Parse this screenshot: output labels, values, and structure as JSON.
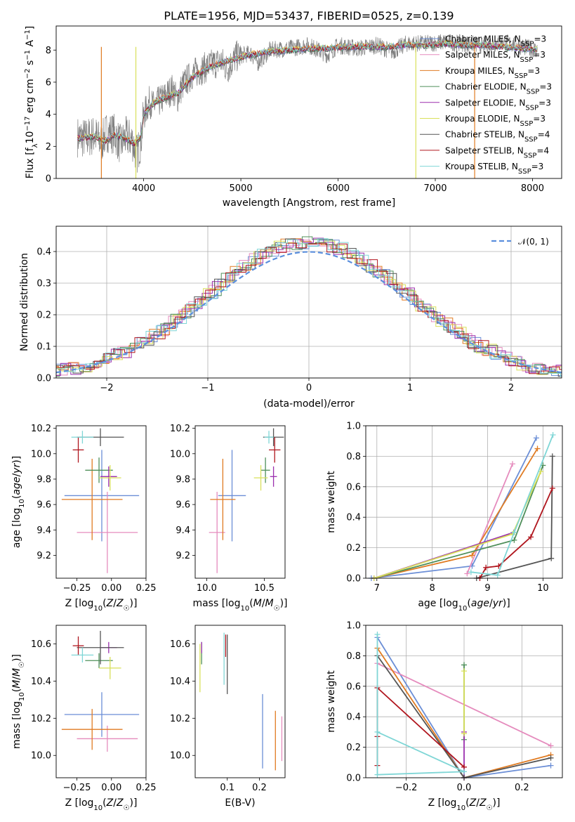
{
  "figure": {
    "title": "PLATE=1956, MJD=53437, FIBERID=0525, z=0.139"
  },
  "series_colors": {
    "Chabrier MILES": "#6b8ed6",
    "Salpeter MILES": "#e58bbd",
    "Kroupa MILES": "#e07b22",
    "Chabrier ELODIE": "#4f8f5a",
    "Salpeter ELODIE": "#9b2fae",
    "Kroupa ELODIE": "#d9e05a",
    "Chabrier STELIB": "#555555",
    "Salpeter STELIB": "#b0161e",
    "Kroupa STELIB": "#7fd6d6"
  },
  "chart_data": [
    {
      "id": "spectrum",
      "type": "line",
      "title": "PLATE=1956, MJD=53437, FIBERID=0525, z=0.139",
      "xlabel": "wavelength [Angstrom, rest frame]",
      "ylabel": "Flux [fλ10⁻¹⁷ erg cm⁻² s⁻¹ A⁻¹]",
      "xlim": [
        3100,
        8300
      ],
      "ylim": [
        0,
        9.5
      ],
      "xticks": [
        4000,
        5000,
        6000,
        7000,
        8000
      ],
      "yticks": [
        0,
        2,
        4,
        6,
        8
      ],
      "data_color": "#808080",
      "data_points": [
        [
          3320,
          2.6
        ],
        [
          3400,
          2.5
        ],
        [
          3500,
          2.7
        ],
        [
          3560,
          2.2
        ],
        [
          3620,
          2.9
        ],
        [
          3700,
          2.8
        ],
        [
          3760,
          2.1
        ],
        [
          3820,
          2.6
        ],
        [
          3880,
          2.4
        ],
        [
          3930,
          1.5
        ],
        [
          3970,
          2.3
        ],
        [
          4000,
          3.9
        ],
        [
          4060,
          4.8
        ],
        [
          4100,
          4.5
        ],
        [
          4200,
          5.0
        ],
        [
          4300,
          5.6
        ],
        [
          4340,
          4.9
        ],
        [
          4400,
          5.8
        ],
        [
          4500,
          6.5
        ],
        [
          4600,
          6.8
        ],
        [
          4700,
          7.1
        ],
        [
          4800,
          7.3
        ],
        [
          4860,
          6.8
        ],
        [
          4950,
          7.6
        ],
        [
          5100,
          7.8
        ],
        [
          5175,
          7.2
        ],
        [
          5300,
          8.0
        ],
        [
          5500,
          8.1
        ],
        [
          5700,
          8.3
        ],
        [
          5890,
          7.7
        ],
        [
          6000,
          8.3
        ],
        [
          6200,
          8.1
        ],
        [
          6400,
          8.3
        ],
        [
          6560,
          7.9
        ],
        [
          6700,
          8.4
        ],
        [
          6900,
          8.4
        ],
        [
          7100,
          8.5
        ],
        [
          7300,
          8.4
        ],
        [
          7500,
          8.3
        ],
        [
          7700,
          8.5
        ],
        [
          7900,
          8.2
        ],
        [
          8050,
          8.0
        ]
      ],
      "model_points": [
        [
          3320,
          2.5
        ],
        [
          3500,
          2.6
        ],
        [
          3600,
          2.3
        ],
        [
          3700,
          2.7
        ],
        [
          3800,
          2.5
        ],
        [
          3900,
          2.2
        ],
        [
          3970,
          2.6
        ],
        [
          4000,
          4.0
        ],
        [
          4100,
          4.7
        ],
        [
          4200,
          5.0
        ],
        [
          4350,
          5.3
        ],
        [
          4500,
          6.3
        ],
        [
          4700,
          7.0
        ],
        [
          4900,
          7.4
        ],
        [
          5100,
          7.7
        ],
        [
          5300,
          7.9
        ],
        [
          5500,
          8.0
        ],
        [
          5700,
          8.1
        ],
        [
          5900,
          8.1
        ],
        [
          6100,
          8.2
        ],
        [
          6300,
          8.2
        ],
        [
          6500,
          8.2
        ],
        [
          6700,
          8.3
        ],
        [
          6900,
          8.3
        ],
        [
          7100,
          8.4
        ],
        [
          7300,
          8.3
        ],
        [
          7500,
          8.3
        ],
        [
          7700,
          8.2
        ],
        [
          7900,
          8.1
        ],
        [
          8050,
          8.0
        ]
      ],
      "series": [
        {
          "name": "Chabrier MILES, N_SSP=3",
          "label": "Chabrier MILES, N",
          "sub": "SSP",
          "suffix": "=3",
          "color": "#6b8ed6"
        },
        {
          "name": "Salpeter MILES, N_SSP=3",
          "label": "Salpeter MILES, N",
          "sub": "SSP",
          "suffix": "=3",
          "color": "#e58bbd"
        },
        {
          "name": "Kroupa MILES, N_SSP=3",
          "label": "Kroupa MILES, N",
          "sub": "SSP",
          "suffix": "=3",
          "color": "#e07b22"
        },
        {
          "name": "Chabrier ELODIE, N_SSP=3",
          "label": "Chabrier ELODIE, N",
          "sub": "SSP",
          "suffix": "=3",
          "color": "#4f8f5a"
        },
        {
          "name": "Salpeter ELODIE, N_SSP=3",
          "label": "Salpeter ELODIE, N",
          "sub": "SSP",
          "suffix": "=3",
          "color": "#9b2fae"
        },
        {
          "name": "Kroupa ELODIE, N_SSP=3",
          "label": "Kroupa ELODIE, N",
          "sub": "SSP",
          "suffix": "=3",
          "color": "#d9e05a"
        },
        {
          "name": "Chabrier STELIB, N_SSP=4",
          "label": "Chabrier STELIB, N",
          "sub": "SSP",
          "suffix": "=4",
          "color": "#555555"
        },
        {
          "name": "Salpeter STELIB, N_SSP=4",
          "label": "Salpeter STELIB, N",
          "sub": "SSP",
          "suffix": "=4",
          "color": "#b0161e"
        },
        {
          "name": "Kroupa STELIB, N_SSP=3",
          "label": "Kroupa STELIB, N",
          "sub": "SSP",
          "suffix": "=3",
          "color": "#7fd6d6"
        }
      ],
      "legend_position": "right"
    },
    {
      "id": "residuals",
      "type": "line",
      "xlabel": "(data-model)/error",
      "ylabel": "Normed distribution",
      "xlim": [
        -2.5,
        2.5
      ],
      "ylim": [
        0,
        0.48
      ],
      "xticks": [
        -2,
        -1,
        0,
        1,
        2
      ],
      "xticklabels": [
        "−2",
        "−1",
        "0",
        "1",
        "2"
      ],
      "yticks": [
        0.0,
        0.1,
        0.2,
        0.3,
        0.4
      ],
      "yticklabels": [
        "0.0",
        "0.1",
        "0.2",
        "0.3",
        "0.4"
      ],
      "grid": true,
      "gaussian": {
        "name": "N(0,1)",
        "legend": "𝒩(0, 1)",
        "color": "#5b8fdd"
      },
      "legend_position": "upper right"
    },
    {
      "id": "age_vs_Z",
      "type": "scatter",
      "xlabel": "Z [log10(Z/Z☉)]",
      "ylabel": "age [log10(age/yr)]",
      "xlim": [
        -0.4,
        0.25
      ],
      "ylim": [
        9.02,
        10.22
      ],
      "xticks": [
        -0.25,
        0.0,
        0.25
      ],
      "xticklabels": [
        "−0.25",
        "0.00",
        "0.25"
      ],
      "yticks": [
        9.2,
        9.4,
        9.6,
        9.8,
        10.0,
        10.2
      ],
      "points": [
        {
          "series": "Chabrier MILES",
          "x": -0.07,
          "y": 9.67,
          "xerr": 0.27,
          "yerr": 0.36
        },
        {
          "series": "Salpeter MILES",
          "x": -0.03,
          "y": 9.38,
          "xerr": 0.22,
          "yerr": 0.32
        },
        {
          "series": "Kroupa MILES",
          "x": -0.14,
          "y": 9.64,
          "xerr": 0.22,
          "yerr": 0.32
        },
        {
          "series": "Chabrier ELODIE",
          "x": -0.09,
          "y": 9.87,
          "xerr": 0.1,
          "yerr": 0.1
        },
        {
          "series": "Salpeter ELODIE",
          "x": -0.02,
          "y": 9.82,
          "xerr": 0.06,
          "yerr": 0.08
        },
        {
          "series": "Kroupa ELODIE",
          "x": -0.01,
          "y": 9.81,
          "xerr": 0.08,
          "yerr": 0.1
        },
        {
          "series": "Chabrier STELIB",
          "x": -0.08,
          "y": 10.13,
          "xerr": 0.17,
          "yerr": 0.07
        },
        {
          "series": "Salpeter STELIB",
          "x": -0.24,
          "y": 10.03,
          "xerr": 0.04,
          "yerr": 0.1
        },
        {
          "series": "Kroupa STELIB",
          "x": -0.21,
          "y": 10.13,
          "xerr": 0.08,
          "yerr": 0.05
        }
      ]
    },
    {
      "id": "age_vs_mass",
      "type": "scatter",
      "xlabel": "mass [log10(M/M☉)]",
      "ylabel": "",
      "xlim": [
        9.9,
        10.68
      ],
      "ylim": [
        9.02,
        10.22
      ],
      "xticks": [
        10.0,
        10.5
      ],
      "xticklabels": [
        "10.0",
        "10.5"
      ],
      "yticks": [
        9.2,
        9.4,
        9.6,
        9.8,
        10.0,
        10.2
      ],
      "points": [
        {
          "series": "Chabrier MILES",
          "x": 10.22,
          "y": 9.67,
          "xerr": 0.12,
          "yerr": 0.36
        },
        {
          "series": "Salpeter MILES",
          "x": 10.09,
          "y": 9.38,
          "xerr": 0.07,
          "yerr": 0.32
        },
        {
          "series": "Kroupa MILES",
          "x": 10.14,
          "y": 9.64,
          "xerr": 0.11,
          "yerr": 0.32
        },
        {
          "series": "Chabrier ELODIE",
          "x": 10.51,
          "y": 9.87,
          "xerr": 0.04,
          "yerr": 0.1
        },
        {
          "series": "Salpeter ELODIE",
          "x": 10.58,
          "y": 9.82,
          "xerr": 0.03,
          "yerr": 0.08
        },
        {
          "series": "Kroupa ELODIE",
          "x": 10.47,
          "y": 9.81,
          "xerr": 0.06,
          "yerr": 0.1
        },
        {
          "series": "Chabrier STELIB",
          "x": 10.58,
          "y": 10.13,
          "xerr": 0.09,
          "yerr": 0.07
        },
        {
          "series": "Salpeter STELIB",
          "x": 10.59,
          "y": 10.03,
          "xerr": 0.05,
          "yerr": 0.1
        },
        {
          "series": "Kroupa STELIB",
          "x": 10.54,
          "y": 10.13,
          "xerr": 0.04,
          "yerr": 0.05
        }
      ]
    },
    {
      "id": "massweight_vs_age",
      "type": "line",
      "xlabel": "age [log10(age/yr)]",
      "ylabel": "mass weight",
      "xlim": [
        6.8,
        10.35
      ],
      "ylim": [
        0,
        1.0
      ],
      "xticks": [
        7,
        8,
        9,
        10
      ],
      "yticks": [
        0.0,
        0.2,
        0.4,
        0.6,
        0.8,
        1.0
      ],
      "grid": true,
      "series": [
        {
          "name": "Chabrier MILES",
          "x": [
            6.9,
            8.72,
            9.88
          ],
          "y": [
            0.0,
            0.08,
            0.92
          ]
        },
        {
          "name": "Salpeter MILES",
          "x": [
            8.63,
            9.45
          ],
          "y": [
            0.03,
            0.75
          ]
        },
        {
          "name": "Kroupa MILES",
          "x": [
            6.95,
            8.72,
            9.9
          ],
          "y": [
            0.0,
            0.15,
            0.85
          ]
        },
        {
          "name": "Chabrier ELODIE",
          "x": [
            6.95,
            9.48,
            10.0
          ],
          "y": [
            0.0,
            0.25,
            0.74
          ]
        },
        {
          "name": "Salpeter ELODIE",
          "x": [
            6.95,
            9.47
          ],
          "y": [
            0.0,
            0.3
          ]
        },
        {
          "name": "Kroupa ELODIE",
          "x": [
            6.95,
            9.45,
            9.96
          ],
          "y": [
            0.0,
            0.29,
            0.7
          ]
        },
        {
          "name": "Chabrier STELIB",
          "x": [
            8.8,
            10.15,
            10.17
          ],
          "y": [
            0.0,
            0.13,
            0.8
          ]
        },
        {
          "name": "Salpeter STELIB",
          "x": [
            8.86,
            8.97,
            9.2,
            9.78,
            10.17
          ],
          "y": [
            0.0,
            0.07,
            0.08,
            0.27,
            0.59
          ]
        },
        {
          "name": "Kroupa STELIB",
          "x": [
            8.7,
            9.18,
            9.48,
            10.18
          ],
          "y": [
            0.04,
            0.02,
            0.3,
            0.94
          ]
        }
      ]
    },
    {
      "id": "mass_vs_Z",
      "type": "scatter",
      "xlabel": "Z [log10(Z/Z☉)]",
      "ylabel": "mass [log10(M/M☉)]",
      "xlim": [
        -0.4,
        0.25
      ],
      "ylim": [
        9.88,
        10.7
      ],
      "xticks": [
        -0.25,
        0.0,
        0.25
      ],
      "xticklabels": [
        "−0.25",
        "0.00",
        "0.25"
      ],
      "yticks": [
        10.0,
        10.2,
        10.4,
        10.6
      ],
      "points": [
        {
          "series": "Chabrier MILES",
          "x": -0.07,
          "y": 10.22,
          "xerr": 0.27,
          "yerr": 0.12
        },
        {
          "series": "Salpeter MILES",
          "x": -0.03,
          "y": 10.09,
          "xerr": 0.22,
          "yerr": 0.07
        },
        {
          "series": "Kroupa MILES",
          "x": -0.14,
          "y": 10.14,
          "xerr": 0.22,
          "yerr": 0.11
        },
        {
          "series": "Chabrier ELODIE",
          "x": -0.09,
          "y": 10.51,
          "xerr": 0.1,
          "yerr": 0.04
        },
        {
          "series": "Salpeter ELODIE",
          "x": -0.02,
          "y": 10.58,
          "xerr": 0.06,
          "yerr": 0.03
        },
        {
          "series": "Kroupa ELODIE",
          "x": -0.01,
          "y": 10.47,
          "xerr": 0.08,
          "yerr": 0.06
        },
        {
          "series": "Chabrier STELIB",
          "x": -0.08,
          "y": 10.58,
          "xerr": 0.17,
          "yerr": 0.09
        },
        {
          "series": "Salpeter STELIB",
          "x": -0.24,
          "y": 10.59,
          "xerr": 0.04,
          "yerr": 0.05
        },
        {
          "series": "Kroupa STELIB",
          "x": -0.21,
          "y": 10.54,
          "xerr": 0.08,
          "yerr": 0.04
        }
      ]
    },
    {
      "id": "mass_vs_EBV",
      "type": "scatter",
      "xlabel": "E(B-V)",
      "ylabel": "",
      "xlim": [
        0.0,
        0.28
      ],
      "ylim": [
        9.88,
        10.7
      ],
      "xticks": [
        0.1,
        0.2
      ],
      "xticklabels": [
        "0.1",
        "0.2"
      ],
      "yticks": [
        10.0,
        10.2,
        10.4,
        10.6
      ],
      "points": [
        {
          "series": "Chabrier MILES",
          "x": 0.21,
          "y": 10.13,
          "yerr": 0.2
        },
        {
          "series": "Salpeter MILES",
          "x": 0.27,
          "y": 10.09,
          "yerr": 0.12
        },
        {
          "series": "Kroupa MILES",
          "x": 0.25,
          "y": 10.08,
          "yerr": 0.16
        },
        {
          "series": "Chabrier ELODIE",
          "x": 0.02,
          "y": 10.55,
          "yerr": 0.06
        },
        {
          "series": "Salpeter ELODIE",
          "x": 0.02,
          "y": 10.58,
          "yerr": 0.03
        },
        {
          "series": "Kroupa ELODIE",
          "x": 0.015,
          "y": 10.47,
          "yerr": 0.13
        },
        {
          "series": "Chabrier STELIB",
          "x": 0.1,
          "y": 10.49,
          "yerr": 0.16
        },
        {
          "series": "Salpeter STELIB",
          "x": 0.095,
          "y": 10.59,
          "yerr": 0.06
        },
        {
          "series": "Kroupa STELIB",
          "x": 0.09,
          "y": 10.52,
          "yerr": 0.14
        }
      ]
    },
    {
      "id": "massweight_vs_Z",
      "type": "line",
      "xlabel": "Z [log10(Z/Z☉)]",
      "ylabel": "mass weight",
      "xlim": [
        -0.34,
        0.34
      ],
      "ylim": [
        0,
        1.0
      ],
      "xticks": [
        -0.2,
        0.0,
        0.2
      ],
      "xticklabels": [
        "−0.2",
        "0.0",
        "0.2"
      ],
      "yticks": [
        0.0,
        0.2,
        0.4,
        0.6,
        0.8,
        1.0
      ],
      "grid": true,
      "series": [
        {
          "name": "Chabrier MILES",
          "x": [
            -0.3,
            0.0,
            0.3
          ],
          "y": [
            0.92,
            0.0,
            0.08
          ]
        },
        {
          "name": "Salpeter MILES",
          "x": [
            -0.3,
            0.3
          ],
          "y": [
            0.75,
            0.21
          ]
        },
        {
          "name": "Kroupa MILES",
          "x": [
            -0.3,
            0.0,
            0.3
          ],
          "y": [
            0.85,
            0.0,
            0.15
          ]
        },
        {
          "name": "Chabrier ELODIE",
          "x": [
            0.0,
            0.0
          ],
          "y": [
            0.25,
            0.74
          ]
        },
        {
          "name": "Salpeter ELODIE",
          "x": [
            0.0,
            0.0
          ],
          "y": [
            0.0,
            0.3
          ]
        },
        {
          "name": "Kroupa ELODIE",
          "x": [
            0.0,
            0.0
          ],
          "y": [
            0.29,
            0.7
          ]
        },
        {
          "name": "Chabrier STELIB",
          "x": [
            -0.3,
            0.0,
            0.3
          ],
          "y": [
            0.8,
            0.0,
            0.13
          ]
        },
        {
          "name": "Salpeter STELIB",
          "x": [
            -0.3,
            -0.3,
            -0.3,
            0.0
          ],
          "y": [
            0.08,
            0.27,
            0.59,
            0.07
          ]
        },
        {
          "name": "Kroupa STELIB",
          "x": [
            -0.3,
            -0.3,
            0.0,
            -0.3
          ],
          "y": [
            0.94,
            0.02,
            0.04,
            0.3
          ]
        }
      ]
    }
  ]
}
